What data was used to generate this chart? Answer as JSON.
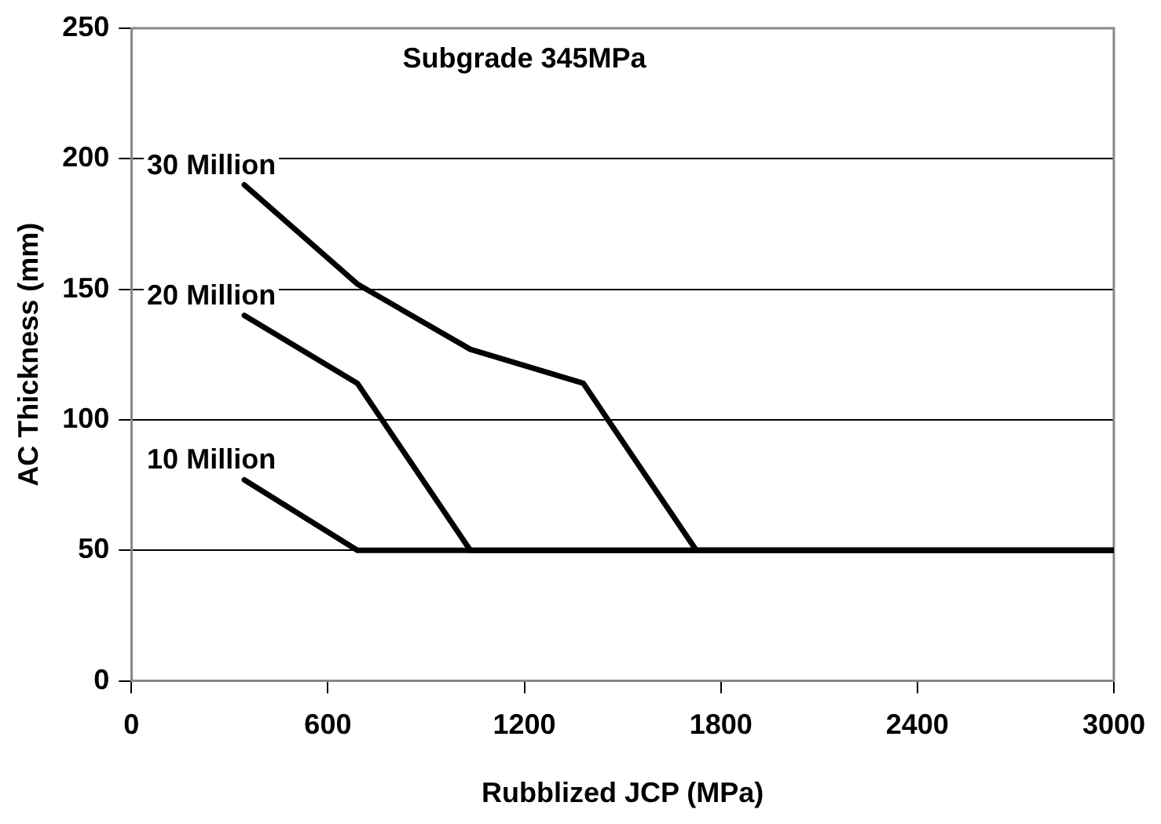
{
  "chart_data": {
    "type": "line",
    "title": "Subgrade 345MPa",
    "xlabel": "Rubblized JCP (MPa)",
    "ylabel": "AC Thickness (mm)",
    "xlim": [
      0,
      3000
    ],
    "xticks": [
      0,
      600,
      1200,
      1800,
      2400,
      3000
    ],
    "ylim": [
      0,
      250
    ],
    "yticks": [
      0,
      50,
      100,
      150,
      200,
      250
    ],
    "grid": "y",
    "legend": false,
    "marker": "none",
    "line_style": "solid",
    "series": [
      {
        "name": "30 Million",
        "color": "#000000",
        "x": [
          345,
          690,
          1035,
          1380,
          1725,
          3000
        ],
        "values": [
          190,
          152,
          127,
          114,
          50,
          50
        ]
      },
      {
        "name": "20 Million",
        "color": "#000000",
        "x": [
          345,
          690,
          1035,
          3000
        ],
        "values": [
          140,
          114,
          50,
          50
        ]
      },
      {
        "name": "10 Million",
        "color": "#000000",
        "x": [
          345,
          690,
          3000
        ],
        "values": [
          77,
          50,
          50
        ]
      }
    ]
  }
}
